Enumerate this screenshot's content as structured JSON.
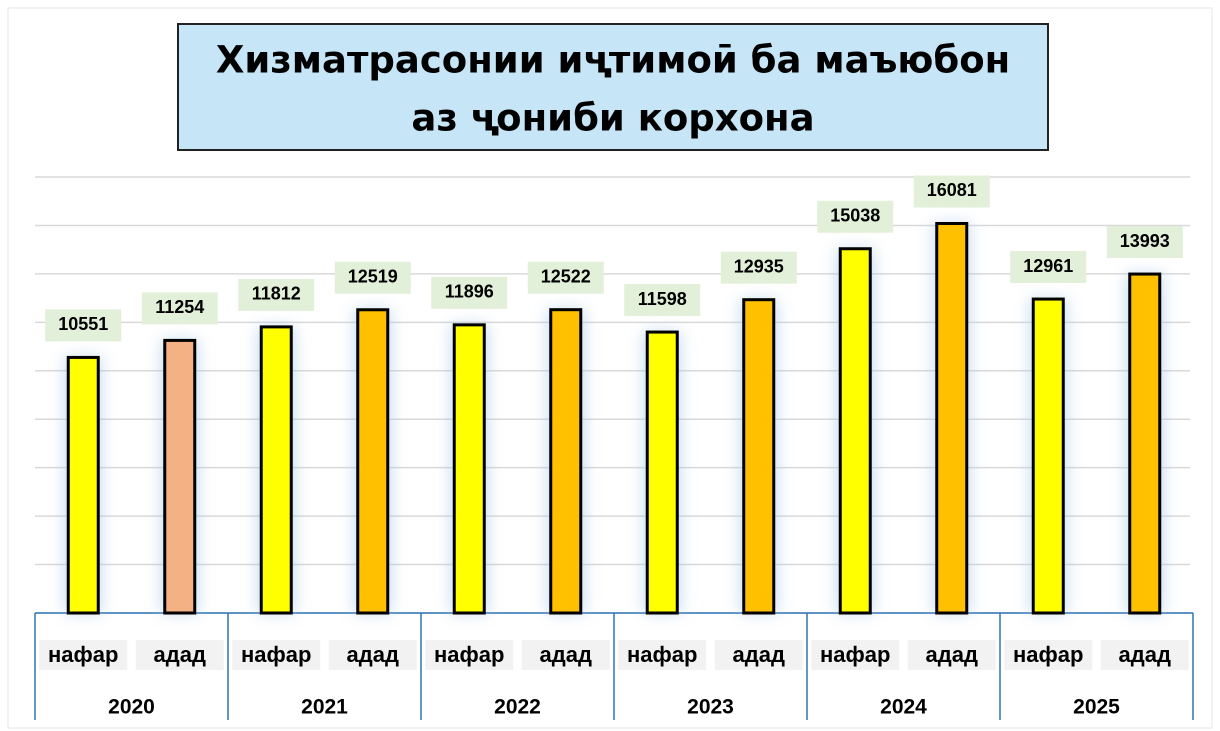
{
  "chart_data": {
    "type": "bar",
    "title": [
      "Хизматрасонии иҷтимоӣ ба маъюбон",
      "аз ҷониби корхона"
    ],
    "categories": [
      "нафар",
      "адад",
      "нафар",
      "адад",
      "нафар",
      "адад",
      "нафар",
      "адад",
      "нафар",
      "адад",
      "нафар",
      "адад"
    ],
    "groups": [
      "2020",
      "2021",
      "2022",
      "2023",
      "2024",
      "2025"
    ],
    "values": [
      10551,
      11254,
      11812,
      12519,
      11896,
      12522,
      11598,
      12935,
      15038,
      16081,
      12961,
      13993
    ],
    "colors": [
      "#ffff00",
      "#f4b183",
      "#ffff00",
      "#ffc000",
      "#ffff00",
      "#ffc000",
      "#ffff00",
      "#ffc000",
      "#ffff00",
      "#ffc000",
      "#ffff00",
      "#ffc000"
    ],
    "ylim": [
      0,
      18000
    ],
    "yticks": [
      0,
      2000,
      4000,
      6000,
      8000,
      10000,
      12000,
      14000,
      16000,
      18000
    ],
    "grid": true
  }
}
